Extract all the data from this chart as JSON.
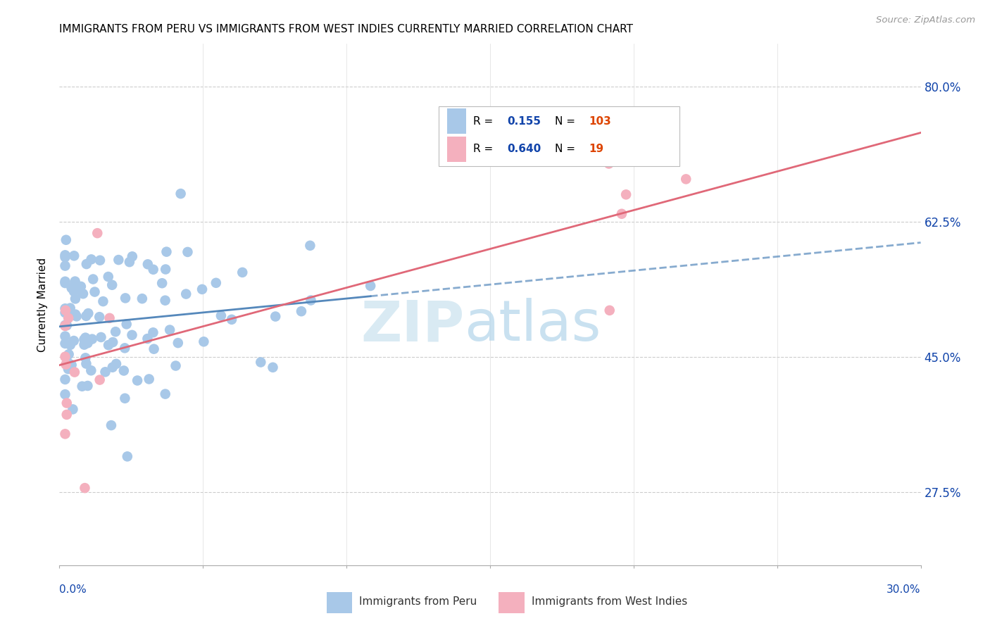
{
  "title": "IMMIGRANTS FROM PERU VS IMMIGRANTS FROM WEST INDIES CURRENTLY MARRIED CORRELATION CHART",
  "source": "Source: ZipAtlas.com",
  "ylabel": "Currently Married",
  "ylabel_ticks": [
    "27.5%",
    "45.0%",
    "62.5%",
    "80.0%"
  ],
  "ylabel_tick_vals": [
    0.275,
    0.45,
    0.625,
    0.8
  ],
  "xmin": 0.0,
  "xmax": 0.3,
  "ymin": 0.18,
  "ymax": 0.855,
  "peru_color": "#a8c8e8",
  "peru_line_color": "#5588bb",
  "west_indies_color": "#f4b0be",
  "west_indies_line_color": "#e06878",
  "legend_peru_R": "0.155",
  "legend_peru_N": "103",
  "legend_wi_R": "0.640",
  "legend_wi_N": "19",
  "legend_R_color": "#1144aa",
  "legend_N_color": "#dd4400",
  "watermark_zip": "ZIP",
  "watermark_atlas": "atlas",
  "bottom_label_peru": "Immigrants from Peru",
  "bottom_label_wi": "Immigrants from West Indies"
}
